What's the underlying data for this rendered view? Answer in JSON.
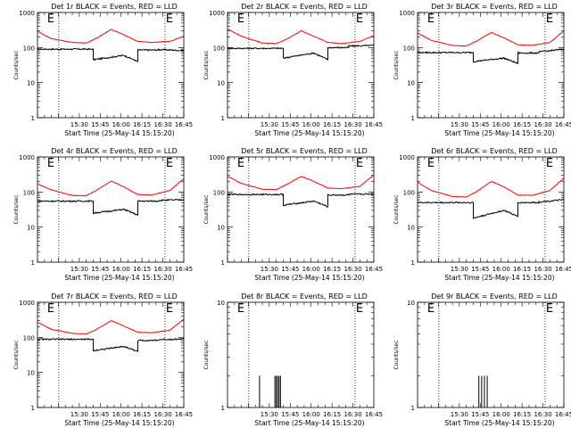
{
  "window": {
    "colors": {
      "background": "#ffffff",
      "events": "#000000",
      "lld": "#ff0000",
      "axes": "#000000"
    }
  },
  "shared": {
    "x_ticks": [
      "15:30",
      "15:45",
      "16:00",
      "16:15",
      "16:30",
      "16:45"
    ],
    "x_tick_minutes": [
      30,
      45,
      60,
      75,
      90,
      105
    ],
    "y_ticks": [
      "1",
      "10",
      "100",
      "1000"
    ],
    "y_tick_values": [
      1,
      10,
      100,
      1000
    ],
    "xlabel": "Start Time (25-May-14 15:15:20)",
    "ylabel": "Counts/sec",
    "e_marker": "E",
    "dotted_marker_minutes": [
      15.3,
      91.5
    ]
  },
  "chart_data": [
    {
      "type": "line",
      "title": "Det 1r BLACK = Events, RED = LLD",
      "xlabel": "Start Time (25-May-14 15:15:20)",
      "ylabel": "Counts/sec",
      "x_unit": "minutes after 15:15:20",
      "ylim": [
        1,
        1000
      ],
      "yscale": "log",
      "series": [
        {
          "name": "BLACK = Events",
          "color": "#000000",
          "noisy": true,
          "x": [
            0,
            40,
            40,
            62,
            72,
            72,
            87,
            87,
            105
          ],
          "y": [
            90,
            90,
            45,
            60,
            40,
            85,
            85,
            88,
            82
          ]
        },
        {
          "name": "RED = LLD",
          "color": "#ff0000",
          "noisy": false,
          "x": [
            0,
            10,
            25,
            35,
            42,
            53,
            62,
            72,
            82,
            95,
            105
          ],
          "y": [
            290,
            180,
            140,
            135,
            180,
            330,
            230,
            150,
            140,
            150,
            210
          ]
        }
      ]
    },
    {
      "type": "line",
      "title": "Det 2r BLACK = Events, RED = LLD",
      "xlabel": "Start Time (25-May-14 15:15:20)",
      "ylabel": "Counts/sec",
      "x_unit": "minutes after 15:15:20",
      "ylim": [
        1,
        1000
      ],
      "yscale": "log",
      "series": [
        {
          "name": "BLACK = Events",
          "color": "#000000",
          "noisy": true,
          "x": [
            0,
            40,
            40,
            62,
            72,
            72,
            87,
            87,
            105
          ],
          "y": [
            95,
            95,
            50,
            70,
            45,
            100,
            100,
            110,
            115
          ]
        },
        {
          "name": "RED = LLD",
          "color": "#ff0000",
          "noisy": false,
          "x": [
            0,
            10,
            25,
            35,
            42,
            53,
            62,
            72,
            82,
            95,
            105
          ],
          "y": [
            340,
            210,
            135,
            130,
            170,
            300,
            210,
            140,
            130,
            150,
            220
          ]
        }
      ]
    },
    {
      "type": "line",
      "title": "Det 3r BLACK = Events, RED = LLD",
      "xlabel": "Start Time (25-May-14 15:15:20)",
      "ylabel": "Counts/sec",
      "x_unit": "minutes after 15:15:20",
      "ylim": [
        1,
        1000
      ],
      "yscale": "log",
      "series": [
        {
          "name": "BLACK = Events",
          "color": "#000000",
          "noisy": true,
          "x": [
            0,
            40,
            40,
            62,
            72,
            72,
            87,
            87,
            105
          ],
          "y": [
            72,
            72,
            40,
            50,
            35,
            70,
            70,
            75,
            90
          ]
        },
        {
          "name": "RED = LLD",
          "color": "#ff0000",
          "noisy": false,
          "x": [
            0,
            10,
            25,
            35,
            42,
            53,
            62,
            72,
            82,
            95,
            105
          ],
          "y": [
            260,
            160,
            115,
            110,
            150,
            270,
            190,
            120,
            115,
            140,
            300
          ]
        }
      ]
    },
    {
      "type": "line",
      "title": "Det 4r BLACK = Events, RED = LLD",
      "xlabel": "Start Time (25-May-14 15:15:20)",
      "ylabel": "Counts/sec",
      "x_unit": "minutes after 15:15:20",
      "ylim": [
        1,
        1000
      ],
      "yscale": "log",
      "series": [
        {
          "name": "BLACK = Events",
          "color": "#000000",
          "noisy": true,
          "x": [
            0,
            40,
            40,
            62,
            72,
            72,
            87,
            87,
            105
          ],
          "y": [
            55,
            55,
            25,
            32,
            22,
            55,
            55,
            58,
            60
          ]
        },
        {
          "name": "RED = LLD",
          "color": "#ff0000",
          "noisy": false,
          "x": [
            0,
            10,
            25,
            35,
            42,
            53,
            62,
            72,
            82,
            95,
            105
          ],
          "y": [
            170,
            115,
            80,
            78,
            110,
            205,
            140,
            85,
            82,
            110,
            240
          ]
        }
      ]
    },
    {
      "type": "line",
      "title": "Det 5r BLACK = Events, RED = LLD",
      "xlabel": "Start Time (25-May-14 15:15:20)",
      "ylabel": "Counts/sec",
      "x_unit": "minutes after 15:15:20",
      "ylim": [
        1,
        1000
      ],
      "yscale": "log",
      "series": [
        {
          "name": "BLACK = Events",
          "color": "#000000",
          "noisy": true,
          "x": [
            0,
            40,
            40,
            62,
            72,
            72,
            87,
            87,
            105
          ],
          "y": [
            85,
            85,
            42,
            55,
            38,
            82,
            82,
            86,
            88
          ]
        },
        {
          "name": "RED = LLD",
          "color": "#ff0000",
          "noisy": false,
          "x": [
            0,
            10,
            25,
            35,
            42,
            53,
            62,
            72,
            82,
            95,
            105
          ],
          "y": [
            280,
            175,
            120,
            118,
            160,
            280,
            200,
            130,
            125,
            145,
            310
          ]
        }
      ]
    },
    {
      "type": "line",
      "title": "Det 6r BLACK = Events, RED = LLD",
      "xlabel": "Start Time (25-May-14 15:15:20)",
      "ylabel": "Counts/sec",
      "x_unit": "minutes after 15:15:20",
      "ylim": [
        1,
        1000
      ],
      "yscale": "log",
      "series": [
        {
          "name": "BLACK = Events",
          "color": "#000000",
          "noisy": true,
          "x": [
            0,
            40,
            40,
            62,
            72,
            72,
            87,
            87,
            105
          ],
          "y": [
            50,
            50,
            18,
            30,
            20,
            50,
            50,
            52,
            60
          ]
        },
        {
          "name": "RED = LLD",
          "color": "#ff0000",
          "noisy": false,
          "x": [
            0,
            10,
            25,
            35,
            42,
            53,
            62,
            72,
            82,
            95,
            105
          ],
          "y": [
            190,
            110,
            75,
            72,
            100,
            200,
            140,
            82,
            80,
            110,
            250
          ]
        }
      ]
    },
    {
      "type": "line",
      "title": "Det 7r BLACK = Events, RED = LLD",
      "xlabel": "Start Time (25-May-14 15:15:20)",
      "ylabel": "Counts/sec",
      "x_unit": "minutes after 15:15:20",
      "ylim": [
        1,
        1000
      ],
      "yscale": "log",
      "series": [
        {
          "name": "BLACK = Events",
          "color": "#000000",
          "noisy": true,
          "x": [
            0,
            40,
            40,
            62,
            72,
            72,
            87,
            87,
            105
          ],
          "y": [
            88,
            88,
            42,
            55,
            40,
            82,
            82,
            86,
            90
          ]
        },
        {
          "name": "RED = LLD",
          "color": "#ff0000",
          "noisy": false,
          "x": [
            0,
            10,
            25,
            35,
            42,
            53,
            62,
            72,
            82,
            95,
            105
          ],
          "y": [
            270,
            170,
            130,
            125,
            165,
            300,
            210,
            140,
            135,
            160,
            330
          ]
        }
      ]
    },
    {
      "type": "line",
      "title": "Det 8r BLACK = Events, RED = LLD",
      "xlabel": "Start Time (25-May-14 15:15:20)",
      "ylabel": "Counts/sec",
      "x_unit": "minutes after 15:15:20",
      "ylim": [
        1,
        10
      ],
      "yscale": "log",
      "series": [
        {
          "name": "BLACK = Events",
          "color": "#000000",
          "noisy": false,
          "spikes": true,
          "x": [
            23,
            34,
            35,
            36,
            37,
            38
          ],
          "y": [
            2,
            2,
            2,
            2,
            2,
            2
          ]
        }
      ]
    },
    {
      "type": "line",
      "title": "Det 9r BLACK = Events, RED = LLD",
      "xlabel": "Start Time (25-May-14 15:15:20)",
      "ylabel": "Counts/sec",
      "x_unit": "minutes after 15:15:20",
      "ylim": [
        1,
        10
      ],
      "yscale": "log",
      "series": [
        {
          "name": "BLACK = Events",
          "color": "#000000",
          "noisy": false,
          "spikes": true,
          "x": [
            44,
            46,
            48,
            50
          ],
          "y": [
            2,
            2,
            2,
            2
          ]
        }
      ]
    }
  ]
}
